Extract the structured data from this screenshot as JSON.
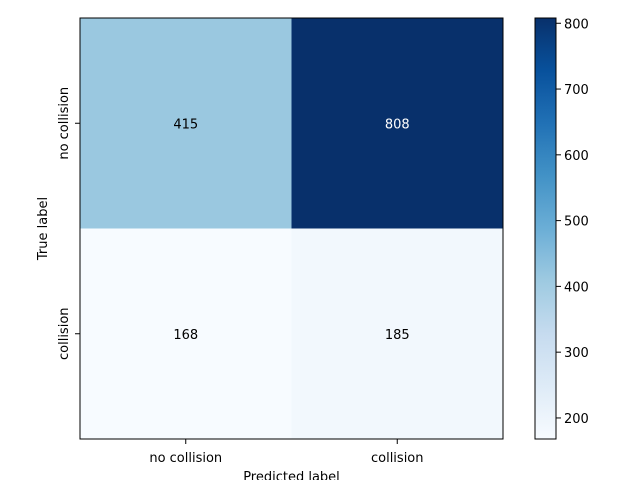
{
  "chart_data": {
    "type": "heatmap",
    "title": "",
    "xlabel": "Predicted label",
    "ylabel": "True label",
    "x_categories": [
      "no collision",
      "collision"
    ],
    "y_categories": [
      "no collision",
      "collision"
    ],
    "matrix": [
      [
        415,
        808
      ],
      [
        168,
        185
      ]
    ],
    "colormap": "Blues",
    "colorbar": {
      "range": [
        168,
        808
      ],
      "ticks": [
        200,
        300,
        400,
        500,
        600,
        700,
        800
      ]
    },
    "colors": {
      "low": "#f7fbff",
      "high": "#08306b",
      "text_light": "#ffffff",
      "text_dark": "#000000"
    }
  }
}
